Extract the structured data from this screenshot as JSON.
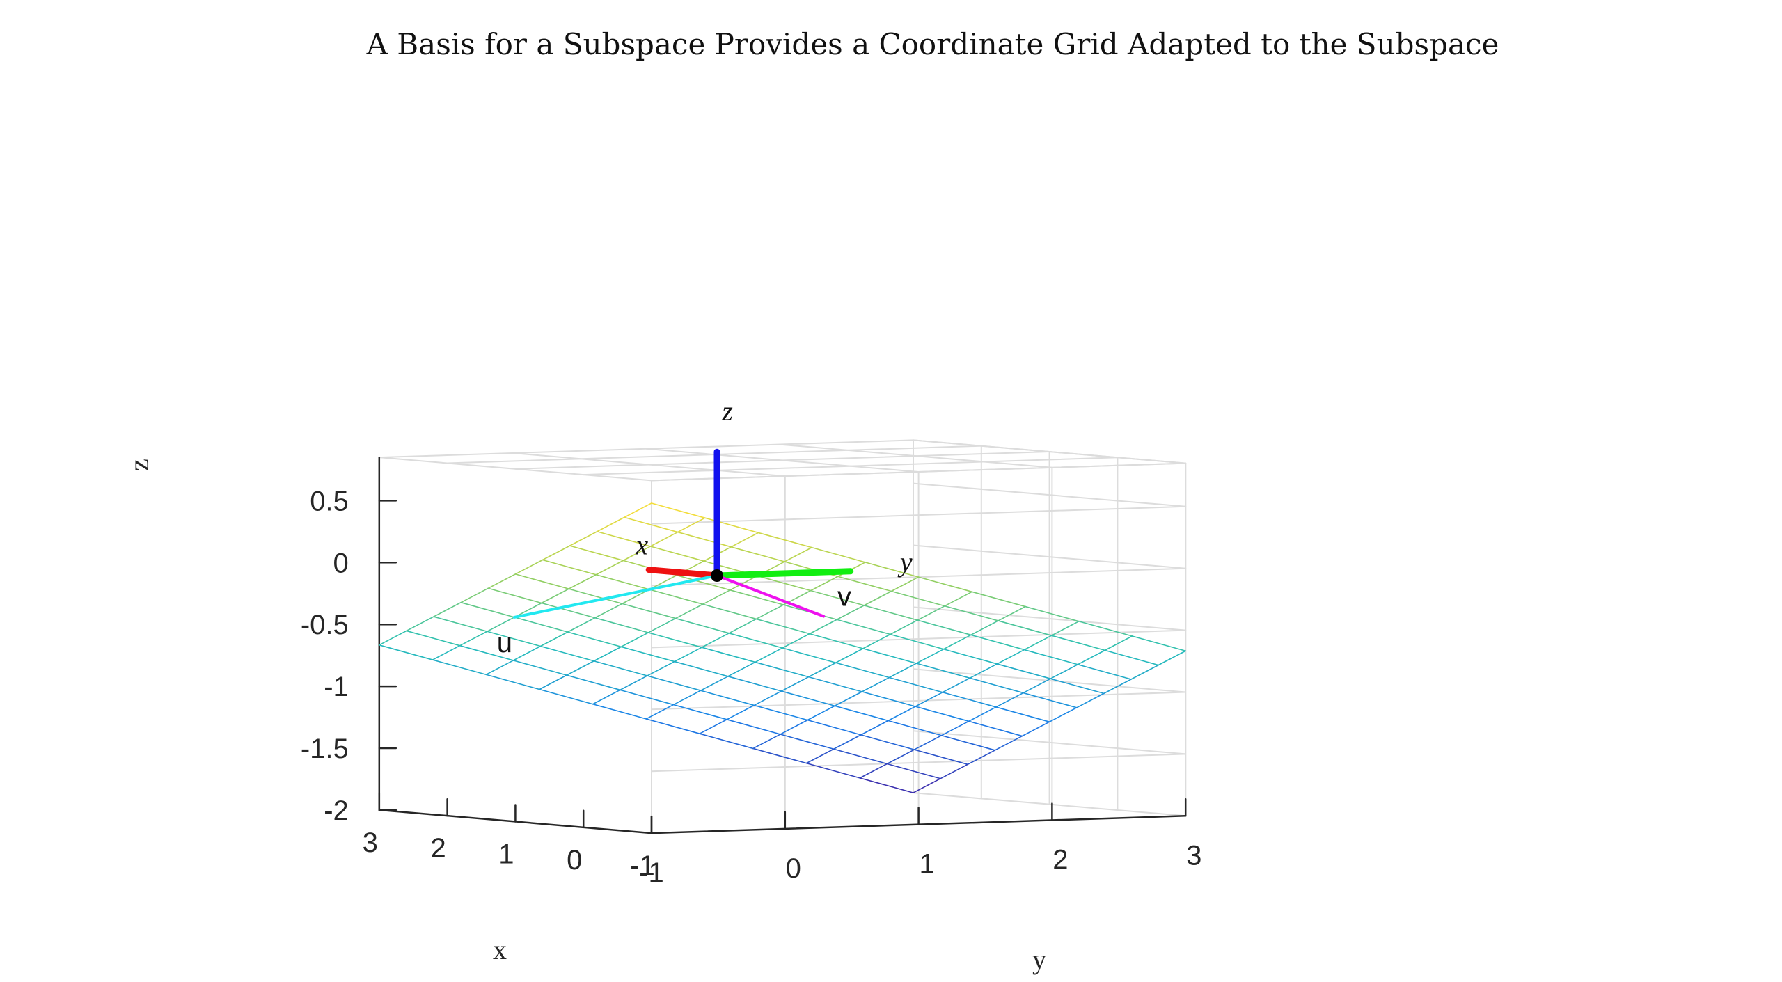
{
  "chart_data": {
    "type": "surface_mesh_3d",
    "title": "A Basis for a Subspace Provides a Coordinate Grid Adapted to the Subspace",
    "xlabel": "x",
    "ylabel": "y",
    "zlabel": "z",
    "xlim": [
      -1,
      3
    ],
    "ylim": [
      -1,
      3
    ],
    "zlim": [
      -2,
      0.85
    ],
    "xticks": [
      "3",
      "2",
      "1",
      "0",
      "-1"
    ],
    "xtick_values": [
      3,
      2,
      1,
      0,
      -1
    ],
    "yticks": [
      "-1",
      "0",
      "1",
      "2",
      "3"
    ],
    "ytick_values": [
      -1,
      0,
      1,
      2,
      3
    ],
    "zticks": [
      "0.5",
      "0",
      "-0.5",
      "-1",
      "-1.5",
      "-2"
    ],
    "ztick_values": [
      0.5,
      0,
      -0.5,
      -1,
      -1.5,
      -2
    ],
    "grid": true,
    "plane": {
      "equation": "z = -(x + y) / 3",
      "x_range": [
        -1,
        3
      ],
      "y_range": [
        -1,
        3
      ],
      "x_divisions": 10,
      "y_divisions": 10,
      "colormap": "parula"
    },
    "coordinate_axes": [
      {
        "label": "x",
        "vector": [
          1,
          0,
          0
        ],
        "color": "#ee1111"
      },
      {
        "label": "y",
        "vector": [
          0,
          1,
          0
        ],
        "color": "#11ee11"
      },
      {
        "label": "z",
        "vector": [
          0,
          0,
          1
        ],
        "color": "#1111ee"
      }
    ],
    "basis_vectors": [
      {
        "label": "u",
        "vector": [
          1.8,
          -0.6,
          -0.4
        ],
        "color": "#22e8f0"
      },
      {
        "label": "v",
        "vector": [
          0.2,
          0.9,
          -0.37
        ],
        "color": "#ee11ee"
      }
    ]
  }
}
